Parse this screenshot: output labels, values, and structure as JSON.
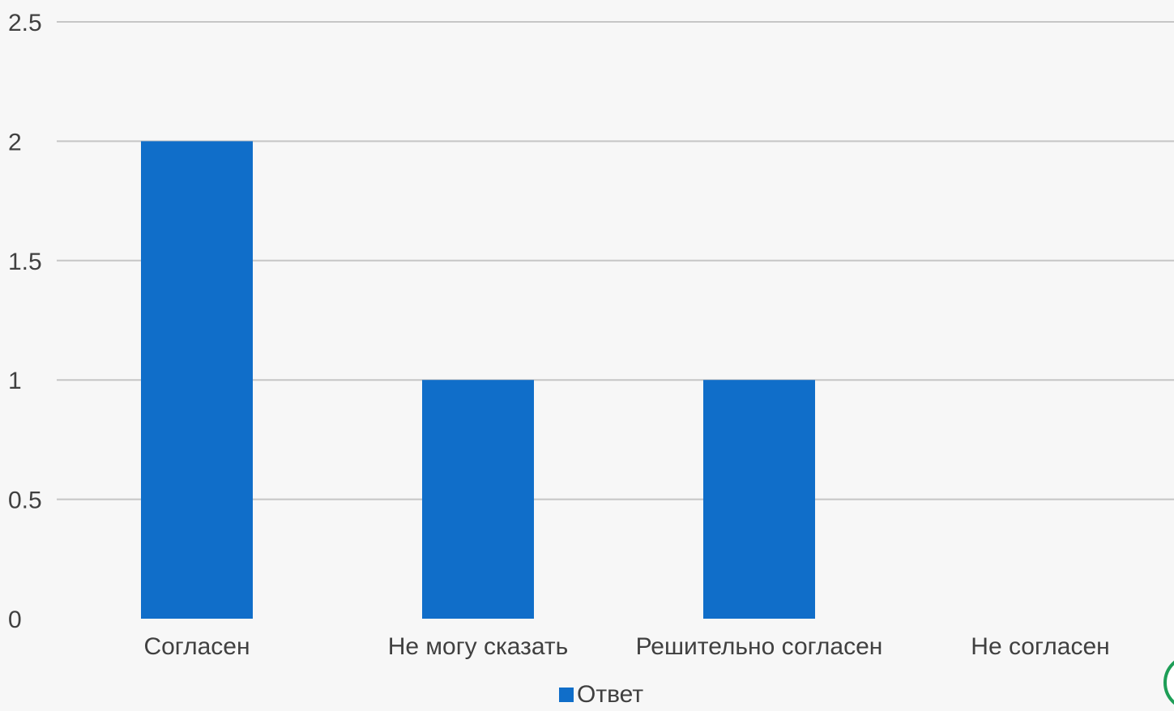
{
  "colors": {
    "bar": "#106ec9",
    "grid": "#c6c6c6",
    "background": "#f7f7f7",
    "badge": "#1e9e57"
  },
  "chart_data": {
    "type": "bar",
    "categories": [
      "Согласен",
      "Не могу сказать",
      "Решительно согласен",
      "Не согласен"
    ],
    "series": [
      {
        "name": "Ответ",
        "values": [
          2,
          1,
          1,
          0
        ]
      }
    ],
    "ylim": [
      0,
      2.5
    ],
    "yticks": [
      "0",
      "0.5",
      "1",
      "1.5",
      "2",
      "2.5"
    ],
    "grid": true,
    "legend": "bottom"
  }
}
